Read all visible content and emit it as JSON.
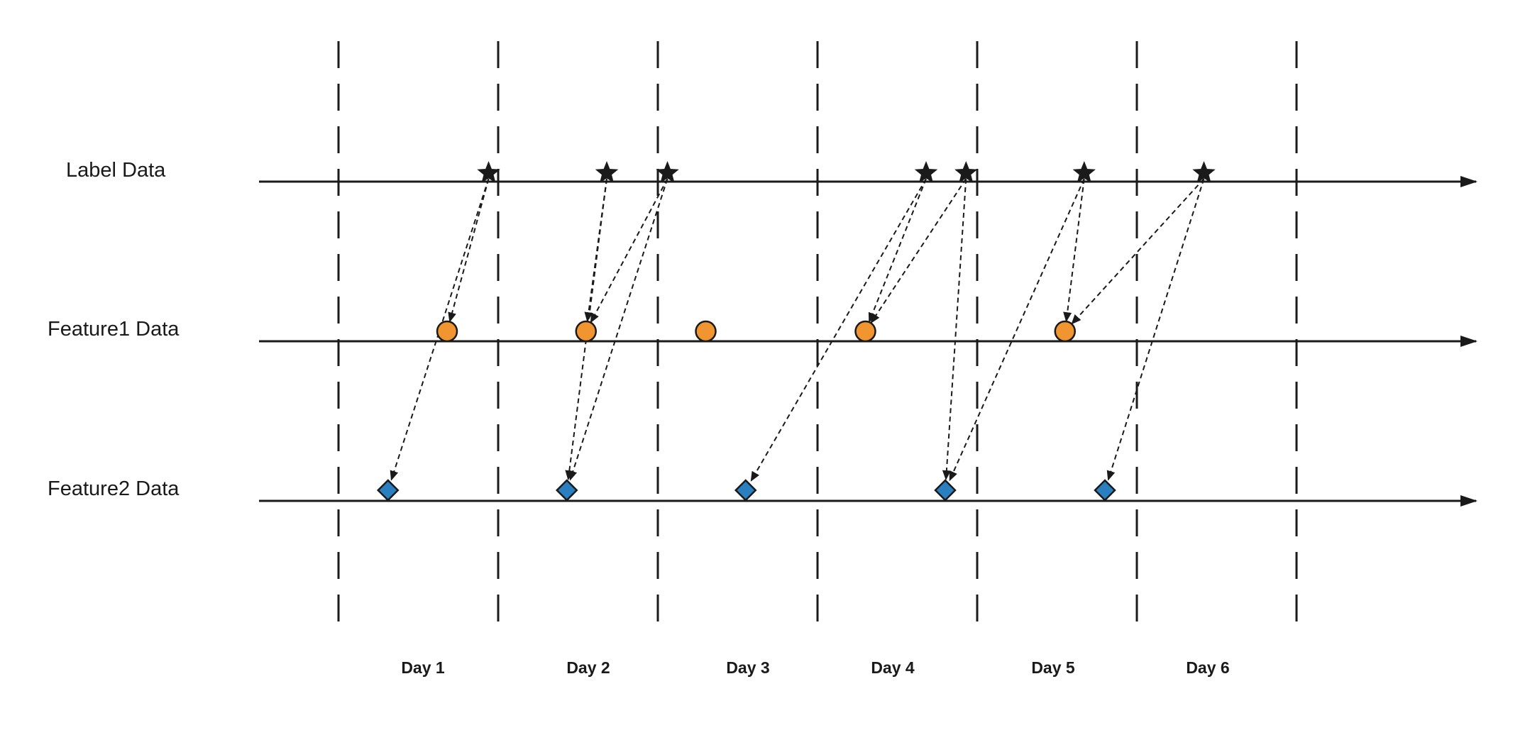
{
  "rows": [
    {
      "key": "label",
      "label": "Label Data",
      "marker": "star"
    },
    {
      "key": "feature1",
      "label": "Feature1 Data",
      "marker": "circle"
    },
    {
      "key": "feature2",
      "label": "Feature2 Data",
      "marker": "diamond"
    }
  ],
  "days": [
    "Day 1",
    "Day 2",
    "Day 3",
    "Day 4",
    "Day 5",
    "Day 6"
  ],
  "events": {
    "label": [
      1.94,
      2.68,
      3.06,
      4.68,
      4.93,
      5.67,
      6.42
    ],
    "feature1": [
      1.68,
      2.55,
      3.3,
      4.3,
      5.55
    ],
    "feature2": [
      1.31,
      2.43,
      3.55,
      4.8,
      5.8
    ]
  },
  "links": [
    {
      "from_row": "label",
      "from": 0,
      "to_row": "feature1",
      "to": 0
    },
    {
      "from_row": "label",
      "from": 0,
      "to_row": "feature2",
      "to": 0
    },
    {
      "from_row": "label",
      "from": 1,
      "to_row": "feature1",
      "to": 1
    },
    {
      "from_row": "label",
      "from": 1,
      "to_row": "feature2",
      "to": 1
    },
    {
      "from_row": "label",
      "from": 2,
      "to_row": "feature1",
      "to": 1
    },
    {
      "from_row": "label",
      "from": 2,
      "to_row": "feature2",
      "to": 1
    },
    {
      "from_row": "label",
      "from": 3,
      "to_row": "feature1",
      "to": 3
    },
    {
      "from_row": "label",
      "from": 3,
      "to_row": "feature2",
      "to": 2
    },
    {
      "from_row": "label",
      "from": 4,
      "to_row": "feature1",
      "to": 3
    },
    {
      "from_row": "label",
      "from": 4,
      "to_row": "feature2",
      "to": 3
    },
    {
      "from_row": "label",
      "from": 5,
      "to_row": "feature1",
      "to": 4
    },
    {
      "from_row": "label",
      "from": 5,
      "to_row": "feature2",
      "to": 3
    },
    {
      "from_row": "label",
      "from": 6,
      "to_row": "feature1",
      "to": 4
    },
    {
      "from_row": "label",
      "from": 6,
      "to_row": "feature2",
      "to": 4
    }
  ],
  "colors": {
    "star": "#1a1a1a",
    "circle": "#f0952f",
    "diamond": "#2a7fc1",
    "outline": "#1a1a1a",
    "line": "#1a1a1a"
  }
}
